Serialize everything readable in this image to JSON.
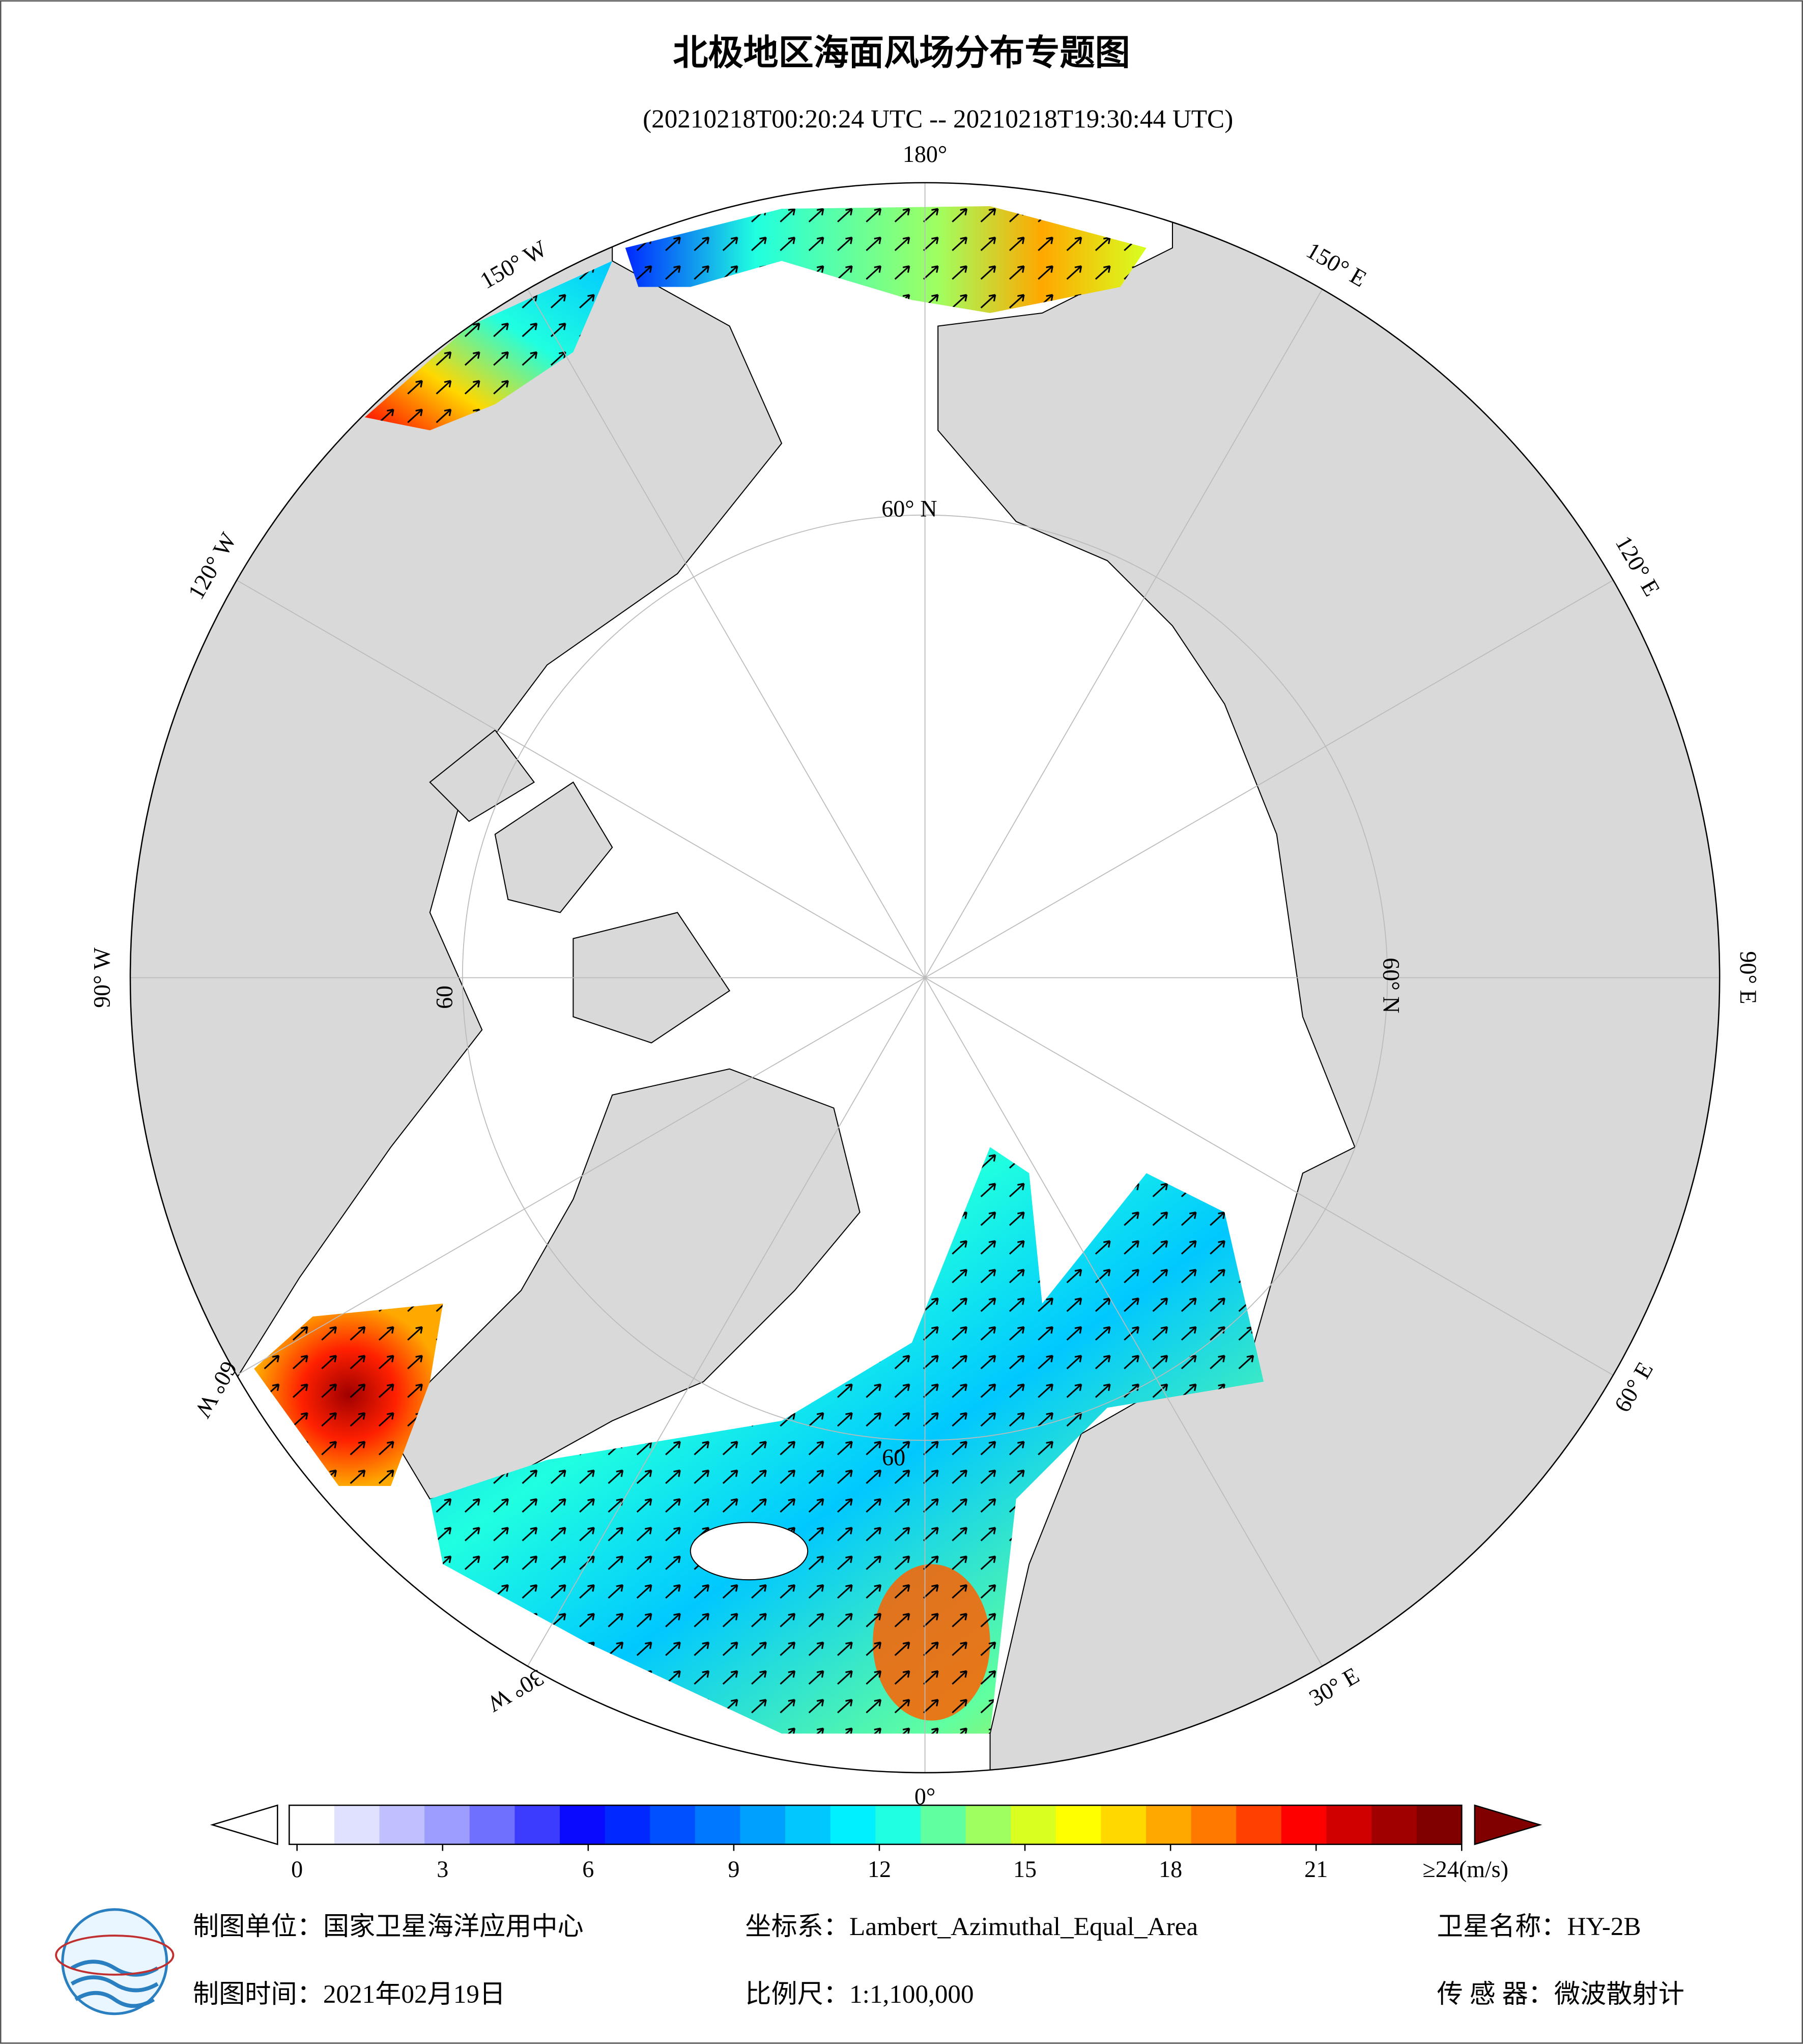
{
  "header": {
    "title": "北极地区海面风场分布专题图",
    "subtitle": "(20210218T00:20:24 UTC -- 20210218T19:30:44 UTC)"
  },
  "map": {
    "lon_labels": [
      "0°",
      "30° E",
      "60° E",
      "90° E",
      "120° E",
      "150° E",
      "180°",
      "150° W",
      "120° W",
      "90° W",
      "60° W",
      "30° W"
    ],
    "lat_labels": [
      "60° N",
      "60° N",
      "60",
      "60"
    ]
  },
  "colorbar": {
    "ticks": [
      0,
      3,
      6,
      9,
      12,
      15,
      18,
      21,
      {
        "value": 24,
        "label": "≥24(m/s)"
      }
    ],
    "colors": [
      "#ffffff",
      "#e0e0ff",
      "#c0c0ff",
      "#9d9dff",
      "#7070ff",
      "#3c3cff",
      "#0a0aff",
      "#0028ff",
      "#0050ff",
      "#0078ff",
      "#00a0ff",
      "#00c8ff",
      "#00f0ff",
      "#20ffe0",
      "#60ffa0",
      "#a0ff60",
      "#d8ff20",
      "#ffff00",
      "#ffd800",
      "#ffa800",
      "#ff7800",
      "#ff4000",
      "#ff0000",
      "#d00000",
      "#a00000",
      "#800000"
    ]
  },
  "footer": {
    "unit": "制图单位：国家卫星海洋应用中心",
    "crs": "坐标系：Lambert_Azimuthal_Equal_Area",
    "satellite": "卫星名称：HY-2B",
    "date": "制图时间：2021年02月19日",
    "scale": "比例尺：1:1,100,000",
    "sensor": "传 感 器：微波散射计"
  }
}
